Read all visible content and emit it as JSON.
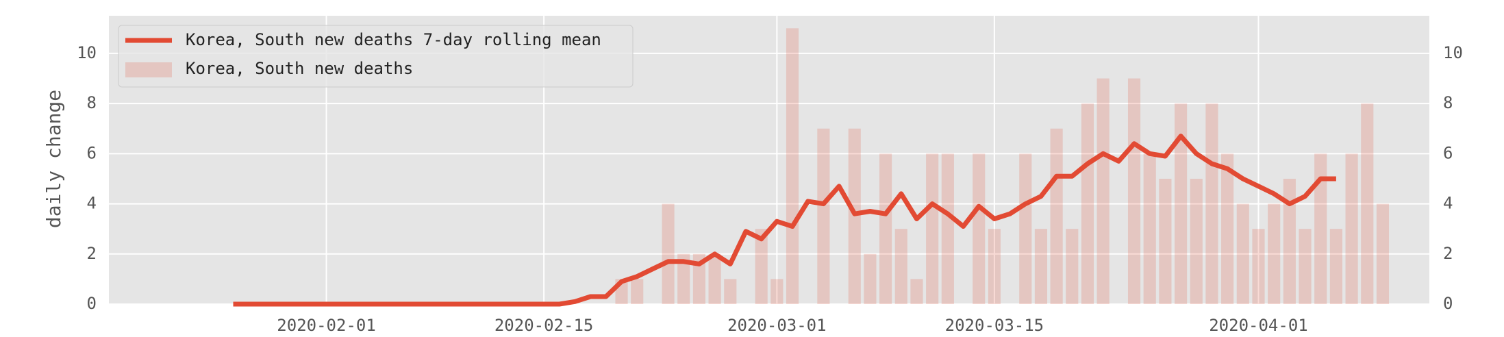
{
  "chart_data": {
    "type": "combo",
    "ylabel": "daily change",
    "x": [
      "2020-01-26",
      "2020-01-27",
      "2020-01-28",
      "2020-01-29",
      "2020-01-30",
      "2020-01-31",
      "2020-02-01",
      "2020-02-02",
      "2020-02-03",
      "2020-02-04",
      "2020-02-05",
      "2020-02-06",
      "2020-02-07",
      "2020-02-08",
      "2020-02-09",
      "2020-02-10",
      "2020-02-11",
      "2020-02-12",
      "2020-02-13",
      "2020-02-14",
      "2020-02-15",
      "2020-02-16",
      "2020-02-17",
      "2020-02-18",
      "2020-02-19",
      "2020-02-20",
      "2020-02-21",
      "2020-02-22",
      "2020-02-23",
      "2020-02-24",
      "2020-02-25",
      "2020-02-26",
      "2020-02-27",
      "2020-02-28",
      "2020-02-29",
      "2020-03-01",
      "2020-03-02",
      "2020-03-03",
      "2020-03-04",
      "2020-03-05",
      "2020-03-06",
      "2020-03-07",
      "2020-03-08",
      "2020-03-09",
      "2020-03-10",
      "2020-03-11",
      "2020-03-12",
      "2020-03-13",
      "2020-03-14",
      "2020-03-15",
      "2020-03-16",
      "2020-03-17",
      "2020-03-18",
      "2020-03-19",
      "2020-03-20",
      "2020-03-21",
      "2020-03-22",
      "2020-03-23",
      "2020-03-24",
      "2020-03-25",
      "2020-03-26",
      "2020-03-27",
      "2020-03-28",
      "2020-03-29",
      "2020-03-30",
      "2020-03-31",
      "2020-04-01",
      "2020-04-02",
      "2020-04-03",
      "2020-04-04",
      "2020-04-05",
      "2020-04-06",
      "2020-04-07",
      "2020-04-08",
      "2020-04-09"
    ],
    "series": [
      {
        "name": "Korea, South new deaths 7-day rolling mean",
        "type": "line",
        "color": "#e24a33",
        "values": [
          0,
          0,
          0,
          0,
          0,
          0,
          0,
          0,
          0,
          0,
          0,
          0,
          0,
          0,
          0,
          0,
          0,
          0,
          0,
          0,
          0,
          0,
          0.1,
          0.3,
          0.3,
          0.9,
          1.1,
          1.4,
          1.7,
          1.7,
          1.6,
          2.0,
          1.6,
          2.9,
          2.6,
          3.3,
          3.1,
          4.1,
          4.0,
          4.7,
          3.6,
          3.7,
          3.6,
          4.4,
          3.4,
          4.0,
          3.6,
          3.1,
          3.9,
          3.4,
          3.6,
          4.0,
          4.3,
          5.1,
          5.1,
          5.6,
          6.0,
          5.7,
          6.4,
          6.0,
          5.9,
          6.7,
          6.0,
          5.6,
          5.4,
          5.0,
          4.7,
          4.4,
          4.0,
          4.3,
          5.0,
          5.0,
          null,
          null,
          null
        ]
      },
      {
        "name": "Korea, South new deaths",
        "type": "bar",
        "color": "#e24a33",
        "values": [
          0,
          0,
          0,
          0,
          0,
          0,
          0,
          0,
          0,
          0,
          0,
          0,
          0,
          0,
          0,
          0,
          0,
          0,
          0,
          0,
          0,
          0,
          0,
          0,
          0,
          1,
          1,
          0,
          4,
          2,
          2,
          2,
          1,
          0,
          3,
          1,
          11,
          0,
          7,
          0,
          7,
          2,
          6,
          3,
          1,
          6,
          6,
          0,
          6,
          3,
          0,
          6,
          3,
          7,
          3,
          8,
          9,
          0,
          9,
          6,
          5,
          8,
          5,
          8,
          6,
          4,
          3,
          4,
          5,
          3,
          6,
          3,
          6,
          8,
          4
        ]
      }
    ],
    "xlim": [
      "2020-01-18",
      "2020-04-12"
    ],
    "xticks": [
      "2020-02-01",
      "2020-02-15",
      "2020-03-01",
      "2020-03-15",
      "2020-04-01"
    ],
    "ylim": [
      0,
      11.5
    ],
    "yticks": [
      0,
      2,
      4,
      6,
      8,
      10
    ],
    "grid": true,
    "legend": "upper left"
  }
}
